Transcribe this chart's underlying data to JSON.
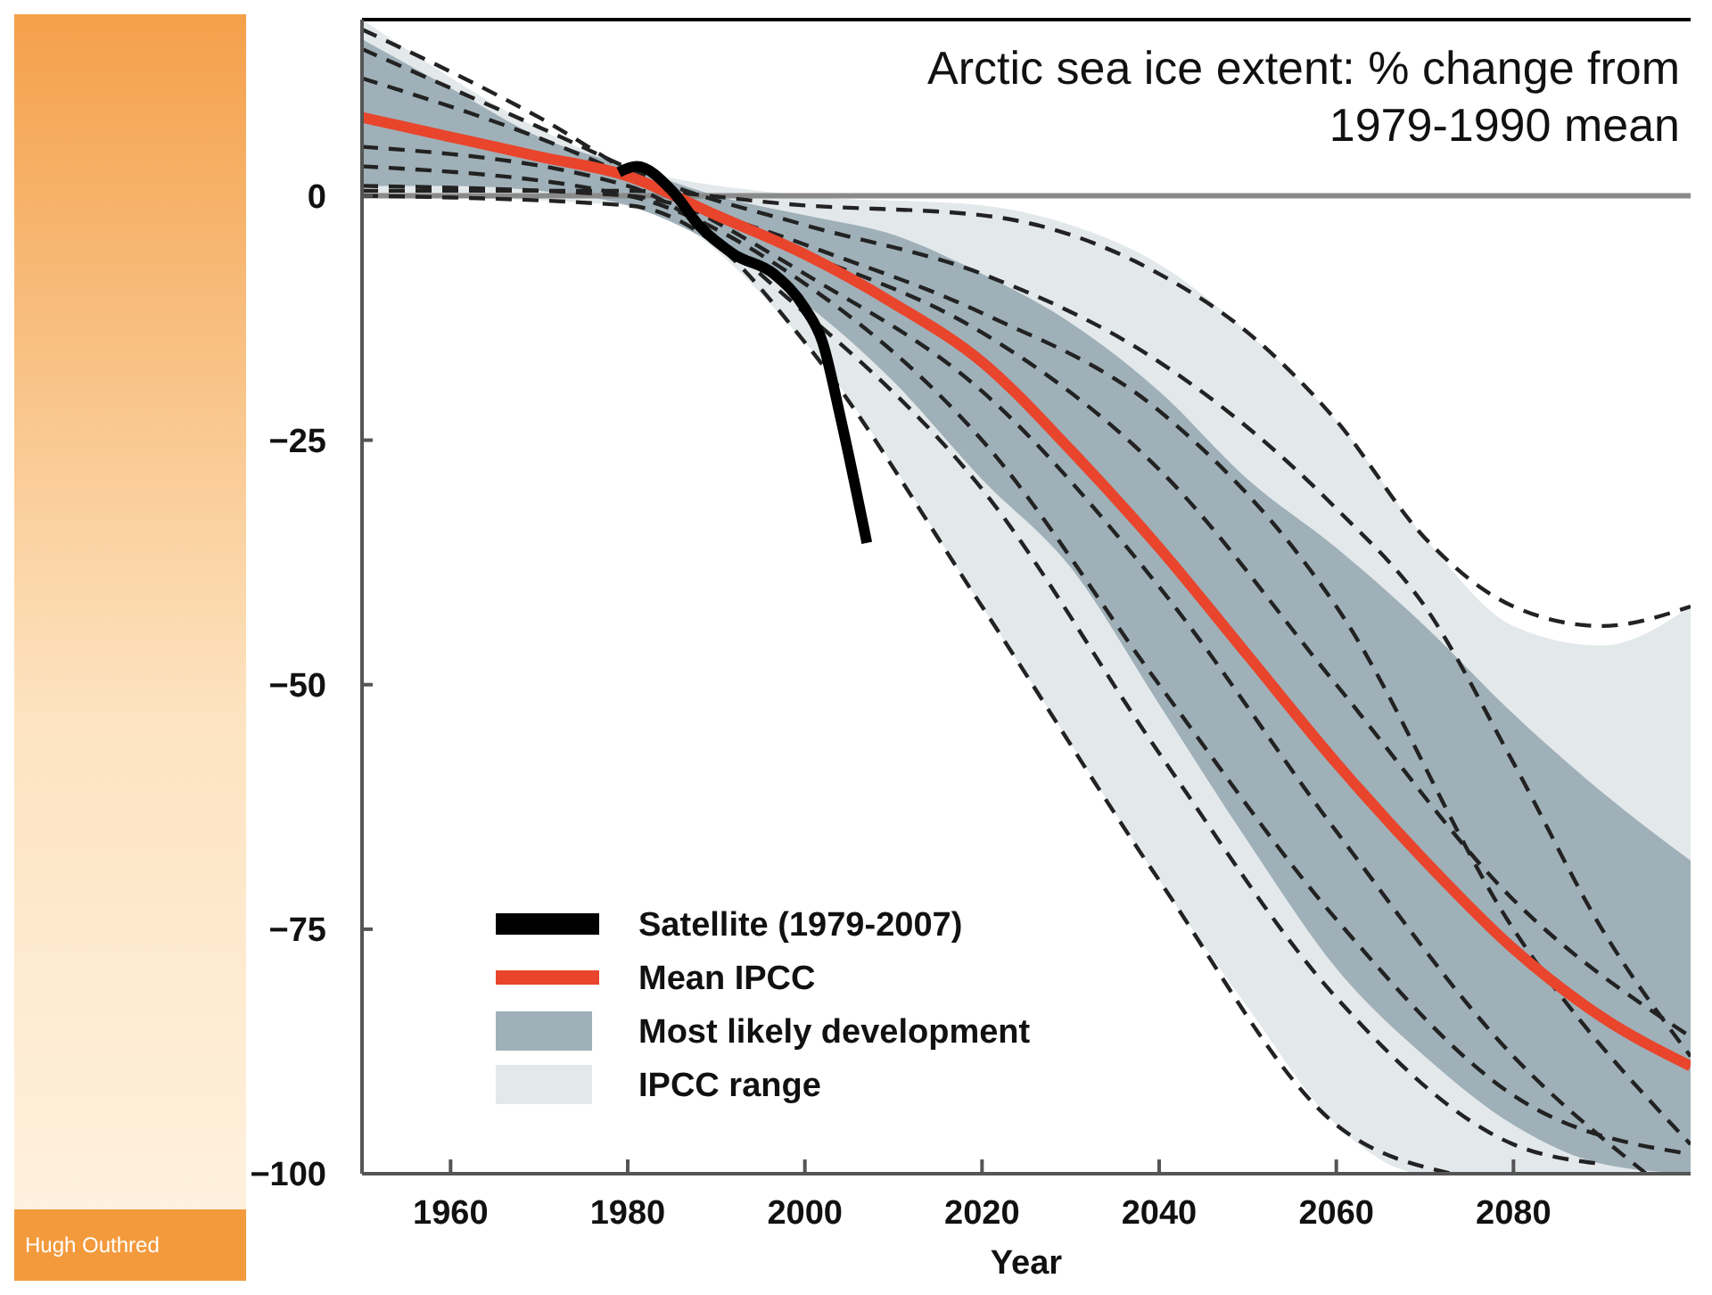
{
  "chart_data": {
    "type": "line",
    "title": "Arctic sea ice extent: % change from 1979-1990 mean",
    "xlabel": "Year",
    "xlim": [
      1950,
      2100
    ],
    "ylim": [
      -100,
      18
    ],
    "xticks": [
      1960,
      1980,
      2000,
      2020,
      2040,
      2060,
      2080
    ],
    "yticks": [
      0,
      {
        "value": -25,
        "label": "−25"
      },
      {
        "value": -50,
        "label": "−50"
      },
      {
        "value": -75,
        "label": "−75"
      },
      {
        "value": -100,
        "label": "−100"
      }
    ],
    "grid": false,
    "legend": "bottom left",
    "ref_lines": [
      {
        "axis": "y",
        "value": 0,
        "color": "#8a8a8a"
      }
    ],
    "annotations": [
      "Hugh Outhred"
    ],
    "series": [
      {
        "name": "Satellite (1979-2007)",
        "line_style": "solid",
        "color": "#000000",
        "x": [
          1979,
          1981,
          1985,
          1988,
          1992,
          1996.5,
          2000,
          2002,
          2004,
          2007
        ],
        "values": [
          2.4,
          3,
          0.5,
          -3,
          -6,
          -8,
          -11.5,
          -15,
          -22.6,
          -35.5
        ]
      },
      {
        "name": "Mean IPCC",
        "line_style": "solid",
        "color": "#e8452c",
        "x": [
          1950,
          1960,
          1970,
          1980,
          1990,
          2000,
          2010,
          2020,
          2030,
          2040,
          2050,
          2060,
          2070,
          2080,
          2090,
          2100
        ],
        "values": [
          8,
          6,
          4,
          2,
          -2,
          -6,
          -11,
          -17,
          -26,
          -36,
          -47,
          -58,
          -68,
          -77,
          -84,
          -89
        ]
      },
      {
        "name": "Most likely development",
        "color": "#9fb0b8",
        "x": [
          1950,
          1960,
          1970,
          1980,
          1990,
          2000,
          2010,
          2020,
          2030,
          2040,
          2050,
          2060,
          2070,
          2080,
          2090,
          2100
        ],
        "values": [
          null,
          null,
          null,
          null,
          null,
          null,
          null,
          null,
          null,
          null,
          null,
          null,
          null,
          null,
          null,
          null
        ],
        "upper": [
          16,
          11,
          6,
          3,
          0,
          -2,
          -4,
          -8,
          -13,
          -20,
          -29,
          -36,
          -44,
          -53,
          -61,
          -68
        ],
        "lower": [
          1,
          1,
          0.5,
          -1,
          -5,
          -11,
          -19,
          -29,
          -38,
          -52,
          -66,
          -79,
          -88,
          -95,
          -99,
          -100
        ]
      },
      {
        "name": "IPCC range",
        "color": "#e3e8ea",
        "x": [
          1950,
          1980,
          2000,
          2020,
          2030,
          2040,
          2050,
          2060,
          2070,
          2080,
          2090,
          2100
        ],
        "values": [
          null,
          null,
          null,
          null,
          null,
          null,
          null,
          null,
          null,
          null,
          null,
          null
        ],
        "upper": [
          18,
          3,
          0,
          -1,
          -3,
          -7,
          -14,
          -23,
          -35,
          -44,
          -46,
          -42
        ],
        "lower": [
          0,
          -1,
          -15,
          -42,
          -56,
          -70,
          -83,
          -95,
          -100,
          -100,
          -100,
          -100
        ]
      },
      {
        "line_style": "dashed",
        "color": "#222222",
        "x": [
          1950,
          1980,
          2000,
          2020,
          2030,
          2040,
          2050,
          2060,
          2070,
          2080,
          2090,
          2100
        ],
        "values": [
          0.5,
          0.5,
          -1,
          -2,
          -4,
          -8,
          -14,
          -23,
          -35,
          -42,
          -44,
          -42
        ]
      },
      {
        "line_style": "dashed",
        "color": "#222222",
        "x": [
          1950,
          1970,
          1985,
          2000,
          2020,
          2040,
          2060,
          2070,
          2080,
          2090,
          2100
        ],
        "values": [
          15,
          7,
          1,
          -3,
          -8,
          -17,
          -32,
          -42,
          -58,
          -75,
          -88
        ]
      },
      {
        "line_style": "dashed",
        "color": "#222222",
        "x": [
          1950,
          1970,
          1985,
          2000,
          2020,
          2040,
          2060,
          2080,
          2100
        ],
        "values": [
          17,
          8,
          0,
          -5,
          -12,
          -22,
          -42,
          -75,
          -97
        ]
      },
      {
        "line_style": "dashed",
        "color": "#222222",
        "x": [
          1950,
          1980,
          2000,
          2020,
          2040,
          2060,
          2080,
          2100
        ],
        "values": [
          3,
          0,
          -9,
          -25,
          -50,
          -74,
          -92,
          -98
        ]
      },
      {
        "line_style": "dashed",
        "color": "#222222",
        "x": [
          1950,
          1980,
          2000,
          2020,
          2040,
          2060,
          2080,
          2090
        ],
        "values": [
          5,
          1,
          -12,
          -30,
          -57,
          -82,
          -97,
          -99
        ]
      },
      {
        "line_style": "dashed",
        "color": "#222222",
        "x": [
          1950,
          1980,
          1990,
          2000,
          2020,
          2040,
          2060,
          2073
        ],
        "values": [
          0,
          -1,
          -5,
          -15,
          -42,
          -70,
          -95,
          -100
        ]
      },
      {
        "line_style": "dashed",
        "color": "#222222",
        "x": [
          1950,
          1980,
          2000,
          2020,
          2040,
          2060,
          2080,
          2095
        ],
        "values": [
          12,
          2,
          -8,
          -20,
          -40,
          -65,
          -88,
          -100
        ]
      },
      {
        "line_style": "dashed",
        "color": "#222222",
        "x": [
          1950,
          1980,
          2000,
          2020,
          2040,
          2060,
          2080,
          2100
        ],
        "values": [
          1,
          0,
          -6,
          -14,
          -28,
          -50,
          -72,
          -86
        ]
      }
    ]
  }
}
